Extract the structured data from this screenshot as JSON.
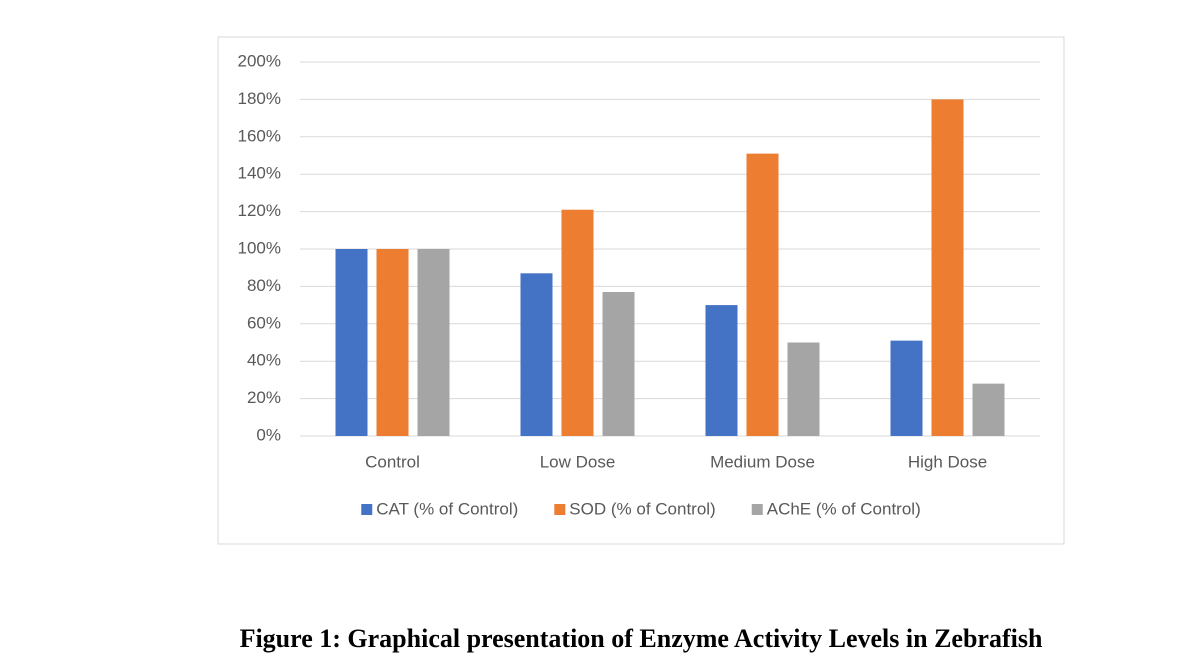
{
  "chart_data": {
    "type": "bar",
    "caption": "Figure 1: Graphical presentation of Enzyme Activity Levels in Zebrafish",
    "categories": [
      "Control",
      "Low Dose",
      "Medium Dose",
      "High Dose"
    ],
    "series": [
      {
        "name": "CAT (% of Control)",
        "color": "#4472c4",
        "values": [
          100,
          87,
          70,
          51
        ]
      },
      {
        "name": "SOD (% of Control)",
        "color": "#ed7d31",
        "values": [
          100,
          121,
          151,
          180
        ]
      },
      {
        "name": "AChE (% of Control)",
        "color": "#a5a5a5",
        "values": [
          100,
          77,
          50,
          28
        ]
      }
    ],
    "ylim": [
      0,
      200
    ],
    "yticks": [
      {
        "value": 0,
        "label": "0%"
      },
      {
        "value": 20,
        "label": "20%"
      },
      {
        "value": 40,
        "label": "40%"
      },
      {
        "value": 60,
        "label": "60%"
      },
      {
        "value": 80,
        "label": "80%"
      },
      {
        "value": 100,
        "label": "100%"
      },
      {
        "value": 120,
        "label": "120%"
      },
      {
        "value": 140,
        "label": "140%"
      },
      {
        "value": 160,
        "label": "160%"
      },
      {
        "value": 180,
        "label": "180%"
      },
      {
        "value": 200,
        "label": "200%"
      }
    ],
    "grid": true,
    "legend": "bottom"
  }
}
